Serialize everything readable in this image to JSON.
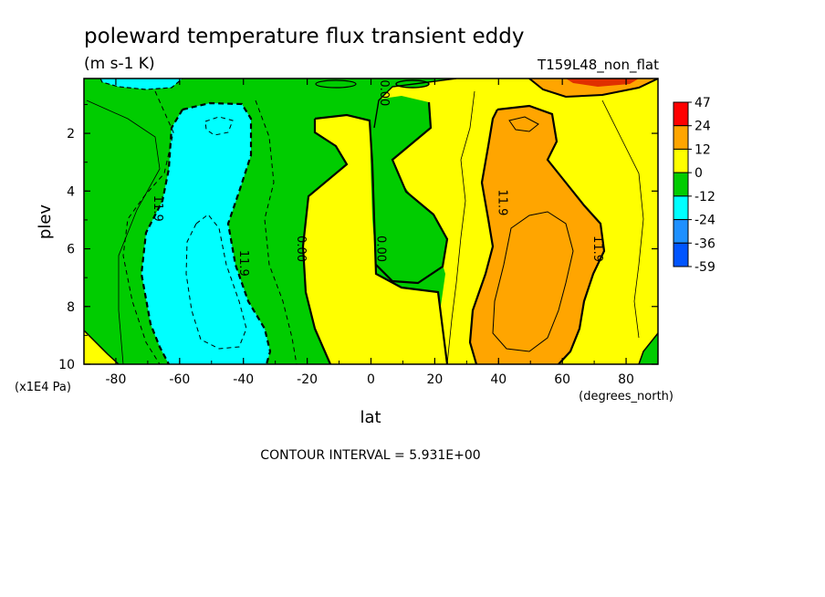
{
  "chart_data": {
    "type": "heatmap",
    "title": "poleward temperature flux transient eddy",
    "units": "(m s-1 K)",
    "dataset": "T159L48_non_flat",
    "xlabel": "lat",
    "x_units": "(degrees_north)",
    "ylabel": "plev",
    "y_units": "(x1E4 Pa)",
    "xlim": [
      -90,
      90
    ],
    "ylim": [
      10,
      0.1
    ],
    "x_ticks": [
      "-80",
      "-60",
      "-40",
      "-20",
      "0",
      "20",
      "40",
      "60",
      "80"
    ],
    "y_ticks": [
      "2",
      "4",
      "6",
      "8",
      "10"
    ],
    "footer": "CONTOUR INTERVAL = 5.931E+00",
    "colorbar": {
      "labels": [
        "47",
        "24",
        "12",
        "0",
        "-12",
        "-24",
        "-36",
        "-59"
      ],
      "colors": [
        "#ff0000",
        "#ffa500",
        "#ffff00",
        "#00cc00",
        "#00ffff",
        "#1e90ff",
        "#0055ff"
      ]
    },
    "contour_labels": [
      {
        "text": "11.9",
        "x": -68,
        "y": 4.6
      },
      {
        "text": "11.9",
        "x": -41,
        "y": 6.5
      },
      {
        "text": "0.00",
        "x": -23,
        "y": 6.0
      },
      {
        "text": "0.00",
        "x": 2,
        "y": 6.0
      },
      {
        "text": "0.00",
        "x": 3,
        "y": 0.6
      },
      {
        "text": "11.9",
        "x": 40,
        "y": 4.4
      },
      {
        "text": "11.9",
        "x": 70,
        "y": 6.0
      }
    ],
    "fill_colors": {
      "green": "#00cc00",
      "cyan": "#00ffff",
      "yellow": "#ffff00",
      "orange": "#ffa500",
      "red": "#ff0000",
      "blue": "#1e90ff"
    }
  }
}
